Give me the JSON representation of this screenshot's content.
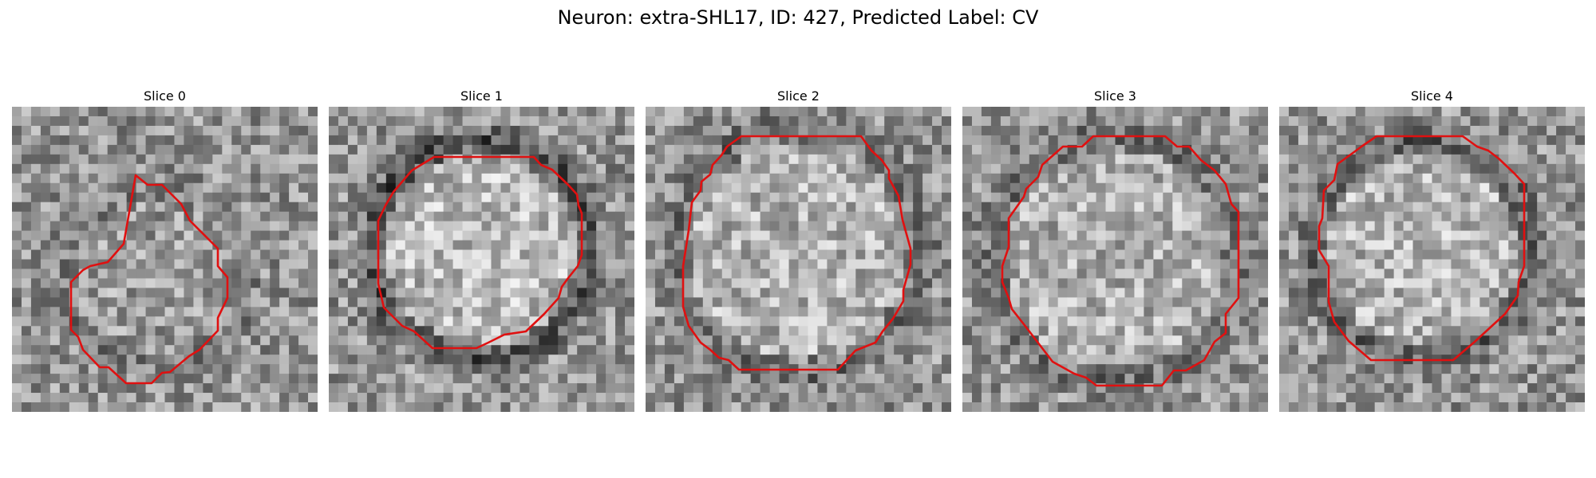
{
  "figure": {
    "title": "Neuron: extra-SHL17, ID: 427, Predicted Label: CV"
  },
  "slices": [
    {
      "title": "Slice 0"
    },
    {
      "title": "Slice 1"
    },
    {
      "title": "Slice 2"
    },
    {
      "title": "Slice 3"
    },
    {
      "title": "Slice 4"
    }
  ],
  "style": {
    "contour_color": "#e01010",
    "background_color": "#ffffff"
  }
}
